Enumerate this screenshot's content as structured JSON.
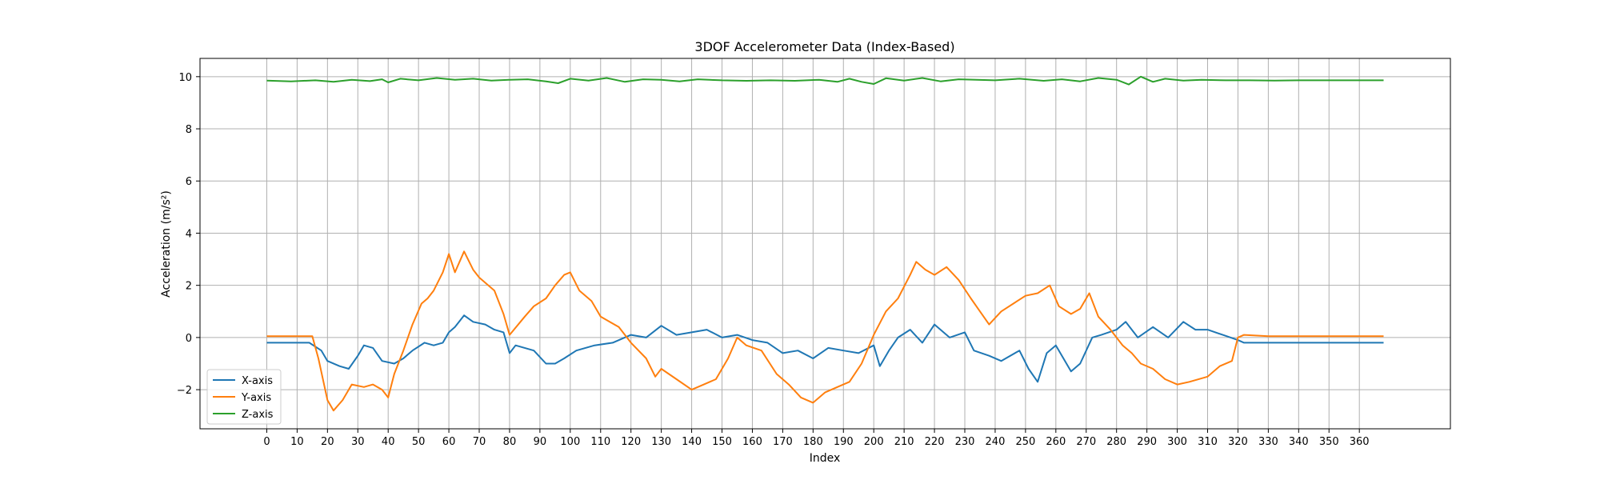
{
  "chart_data": {
    "type": "line",
    "title": "3DOF Accelerometer Data (Index-Based)",
    "xlabel": "Index",
    "ylabel": "Acceleration (m/s²)",
    "xlim": [
      -22,
      390
    ],
    "ylim": [
      -3.5,
      10.7
    ],
    "xticks": [
      0,
      10,
      20,
      30,
      40,
      50,
      60,
      70,
      80,
      90,
      100,
      110,
      120,
      130,
      140,
      150,
      160,
      170,
      180,
      190,
      200,
      210,
      220,
      230,
      240,
      250,
      260,
      270,
      280,
      290,
      300,
      310,
      320,
      330,
      340,
      350,
      360
    ],
    "yticks": [
      -2,
      0,
      2,
      4,
      6,
      8,
      10
    ],
    "grid": true,
    "legend_position": "lower-left",
    "series": [
      {
        "name": "X-axis",
        "color": "#1f77b4",
        "points": [
          [
            0,
            -0.2
          ],
          [
            10,
            -0.2
          ],
          [
            14,
            -0.2
          ],
          [
            18,
            -0.5
          ],
          [
            20,
            -0.9
          ],
          [
            24,
            -1.1
          ],
          [
            27,
            -1.2
          ],
          [
            30,
            -0.7
          ],
          [
            32,
            -0.3
          ],
          [
            35,
            -0.4
          ],
          [
            38,
            -0.9
          ],
          [
            42,
            -1.0
          ],
          [
            45,
            -0.8
          ],
          [
            48,
            -0.5
          ],
          [
            52,
            -0.2
          ],
          [
            55,
            -0.3
          ],
          [
            58,
            -0.2
          ],
          [
            60,
            0.2
          ],
          [
            62,
            0.4
          ],
          [
            65,
            0.85
          ],
          [
            68,
            0.6
          ],
          [
            72,
            0.5
          ],
          [
            75,
            0.3
          ],
          [
            78,
            0.2
          ],
          [
            80,
            -0.6
          ],
          [
            82,
            -0.3
          ],
          [
            88,
            -0.5
          ],
          [
            92,
            -1.0
          ],
          [
            95,
            -1.0
          ],
          [
            98,
            -0.8
          ],
          [
            102,
            -0.5
          ],
          [
            108,
            -0.3
          ],
          [
            114,
            -0.2
          ],
          [
            120,
            0.1
          ],
          [
            125,
            0.0
          ],
          [
            130,
            0.45
          ],
          [
            135,
            0.1
          ],
          [
            140,
            0.2
          ],
          [
            145,
            0.3
          ],
          [
            150,
            0.0
          ],
          [
            155,
            0.1
          ],
          [
            160,
            -0.1
          ],
          [
            165,
            -0.2
          ],
          [
            170,
            -0.6
          ],
          [
            175,
            -0.5
          ],
          [
            180,
            -0.8
          ],
          [
            185,
            -0.4
          ],
          [
            190,
            -0.5
          ],
          [
            195,
            -0.6
          ],
          [
            200,
            -0.3
          ],
          [
            202,
            -1.1
          ],
          [
            205,
            -0.5
          ],
          [
            208,
            0.0
          ],
          [
            212,
            0.3
          ],
          [
            216,
            -0.2
          ],
          [
            220,
            0.5
          ],
          [
            225,
            0.0
          ],
          [
            230,
            0.2
          ],
          [
            233,
            -0.5
          ],
          [
            238,
            -0.7
          ],
          [
            242,
            -0.9
          ],
          [
            248,
            -0.5
          ],
          [
            251,
            -1.2
          ],
          [
            254,
            -1.7
          ],
          [
            257,
            -0.6
          ],
          [
            260,
            -0.3
          ],
          [
            265,
            -1.3
          ],
          [
            268,
            -1.0
          ],
          [
            272,
            0.0
          ],
          [
            275,
            0.1
          ],
          [
            280,
            0.3
          ],
          [
            283,
            0.6
          ],
          [
            287,
            0.0
          ],
          [
            292,
            0.4
          ],
          [
            297,
            0.0
          ],
          [
            302,
            0.6
          ],
          [
            306,
            0.3
          ],
          [
            310,
            0.3
          ],
          [
            315,
            0.1
          ],
          [
            320,
            -0.1
          ],
          [
            322,
            -0.2
          ],
          [
            330,
            -0.2
          ],
          [
            340,
            -0.2
          ],
          [
            350,
            -0.2
          ],
          [
            360,
            -0.2
          ],
          [
            368,
            -0.2
          ]
        ]
      },
      {
        "name": "Y-axis",
        "color": "#ff7f0e",
        "points": [
          [
            0,
            0.05
          ],
          [
            10,
            0.05
          ],
          [
            15,
            0.05
          ],
          [
            17,
            -0.8
          ],
          [
            20,
            -2.4
          ],
          [
            22,
            -2.8
          ],
          [
            25,
            -2.4
          ],
          [
            28,
            -1.8
          ],
          [
            32,
            -1.9
          ],
          [
            35,
            -1.8
          ],
          [
            38,
            -2.0
          ],
          [
            40,
            -2.3
          ],
          [
            42,
            -1.4
          ],
          [
            45,
            -0.5
          ],
          [
            48,
            0.5
          ],
          [
            51,
            1.3
          ],
          [
            53,
            1.5
          ],
          [
            55,
            1.8
          ],
          [
            58,
            2.5
          ],
          [
            60,
            3.2
          ],
          [
            62,
            2.5
          ],
          [
            65,
            3.3
          ],
          [
            68,
            2.6
          ],
          [
            70,
            2.3
          ],
          [
            75,
            1.8
          ],
          [
            78,
            0.9
          ],
          [
            80,
            0.1
          ],
          [
            85,
            0.8
          ],
          [
            88,
            1.2
          ],
          [
            92,
            1.5
          ],
          [
            95,
            2.0
          ],
          [
            98,
            2.4
          ],
          [
            100,
            2.5
          ],
          [
            103,
            1.8
          ],
          [
            107,
            1.4
          ],
          [
            110,
            0.8
          ],
          [
            113,
            0.6
          ],
          [
            116,
            0.4
          ],
          [
            120,
            -0.2
          ],
          [
            125,
            -0.8
          ],
          [
            128,
            -1.5
          ],
          [
            130,
            -1.2
          ],
          [
            135,
            -1.6
          ],
          [
            140,
            -2.0
          ],
          [
            144,
            -1.8
          ],
          [
            148,
            -1.6
          ],
          [
            152,
            -0.8
          ],
          [
            155,
            0.0
          ],
          [
            158,
            -0.3
          ],
          [
            163,
            -0.5
          ],
          [
            168,
            -1.4
          ],
          [
            172,
            -1.8
          ],
          [
            176,
            -2.3
          ],
          [
            180,
            -2.5
          ],
          [
            184,
            -2.1
          ],
          [
            188,
            -1.9
          ],
          [
            192,
            -1.7
          ],
          [
            196,
            -1.0
          ],
          [
            200,
            0.1
          ],
          [
            204,
            1.0
          ],
          [
            208,
            1.5
          ],
          [
            212,
            2.4
          ],
          [
            214,
            2.9
          ],
          [
            217,
            2.6
          ],
          [
            220,
            2.4
          ],
          [
            224,
            2.7
          ],
          [
            228,
            2.2
          ],
          [
            232,
            1.5
          ],
          [
            235,
            1.0
          ],
          [
            238,
            0.5
          ],
          [
            242,
            1.0
          ],
          [
            246,
            1.3
          ],
          [
            250,
            1.6
          ],
          [
            254,
            1.7
          ],
          [
            258,
            2.0
          ],
          [
            261,
            1.2
          ],
          [
            265,
            0.9
          ],
          [
            268,
            1.1
          ],
          [
            271,
            1.7
          ],
          [
            274,
            0.8
          ],
          [
            278,
            0.3
          ],
          [
            282,
            -0.3
          ],
          [
            285,
            -0.6
          ],
          [
            288,
            -1.0
          ],
          [
            292,
            -1.2
          ],
          [
            296,
            -1.6
          ],
          [
            300,
            -1.8
          ],
          [
            304,
            -1.7
          ],
          [
            310,
            -1.5
          ],
          [
            314,
            -1.1
          ],
          [
            318,
            -0.9
          ],
          [
            320,
            0.0
          ],
          [
            322,
            0.1
          ],
          [
            330,
            0.05
          ],
          [
            340,
            0.05
          ],
          [
            350,
            0.05
          ],
          [
            360,
            0.05
          ],
          [
            368,
            0.05
          ]
        ]
      },
      {
        "name": "Z-axis",
        "color": "#2ca02c",
        "points": [
          [
            0,
            9.85
          ],
          [
            8,
            9.82
          ],
          [
            16,
            9.86
          ],
          [
            22,
            9.8
          ],
          [
            28,
            9.88
          ],
          [
            34,
            9.83
          ],
          [
            38,
            9.9
          ],
          [
            40,
            9.78
          ],
          [
            44,
            9.92
          ],
          [
            50,
            9.86
          ],
          [
            56,
            9.95
          ],
          [
            62,
            9.88
          ],
          [
            68,
            9.92
          ],
          [
            74,
            9.85
          ],
          [
            80,
            9.88
          ],
          [
            86,
            9.9
          ],
          [
            92,
            9.82
          ],
          [
            96,
            9.75
          ],
          [
            100,
            9.92
          ],
          [
            106,
            9.85
          ],
          [
            112,
            9.95
          ],
          [
            118,
            9.8
          ],
          [
            124,
            9.9
          ],
          [
            130,
            9.88
          ],
          [
            136,
            9.82
          ],
          [
            142,
            9.9
          ],
          [
            150,
            9.86
          ],
          [
            158,
            9.84
          ],
          [
            166,
            9.86
          ],
          [
            174,
            9.84
          ],
          [
            182,
            9.88
          ],
          [
            188,
            9.8
          ],
          [
            192,
            9.92
          ],
          [
            196,
            9.8
          ],
          [
            200,
            9.72
          ],
          [
            204,
            9.94
          ],
          [
            210,
            9.85
          ],
          [
            216,
            9.95
          ],
          [
            222,
            9.82
          ],
          [
            228,
            9.9
          ],
          [
            234,
            9.88
          ],
          [
            240,
            9.86
          ],
          [
            248,
            9.92
          ],
          [
            256,
            9.84
          ],
          [
            262,
            9.9
          ],
          [
            268,
            9.82
          ],
          [
            274,
            9.95
          ],
          [
            280,
            9.88
          ],
          [
            284,
            9.7
          ],
          [
            288,
            10.0
          ],
          [
            292,
            9.8
          ],
          [
            296,
            9.92
          ],
          [
            302,
            9.85
          ],
          [
            308,
            9.88
          ],
          [
            316,
            9.86
          ],
          [
            324,
            9.86
          ],
          [
            332,
            9.85
          ],
          [
            340,
            9.86
          ],
          [
            350,
            9.86
          ],
          [
            360,
            9.86
          ],
          [
            368,
            9.86
          ]
        ]
      }
    ]
  }
}
